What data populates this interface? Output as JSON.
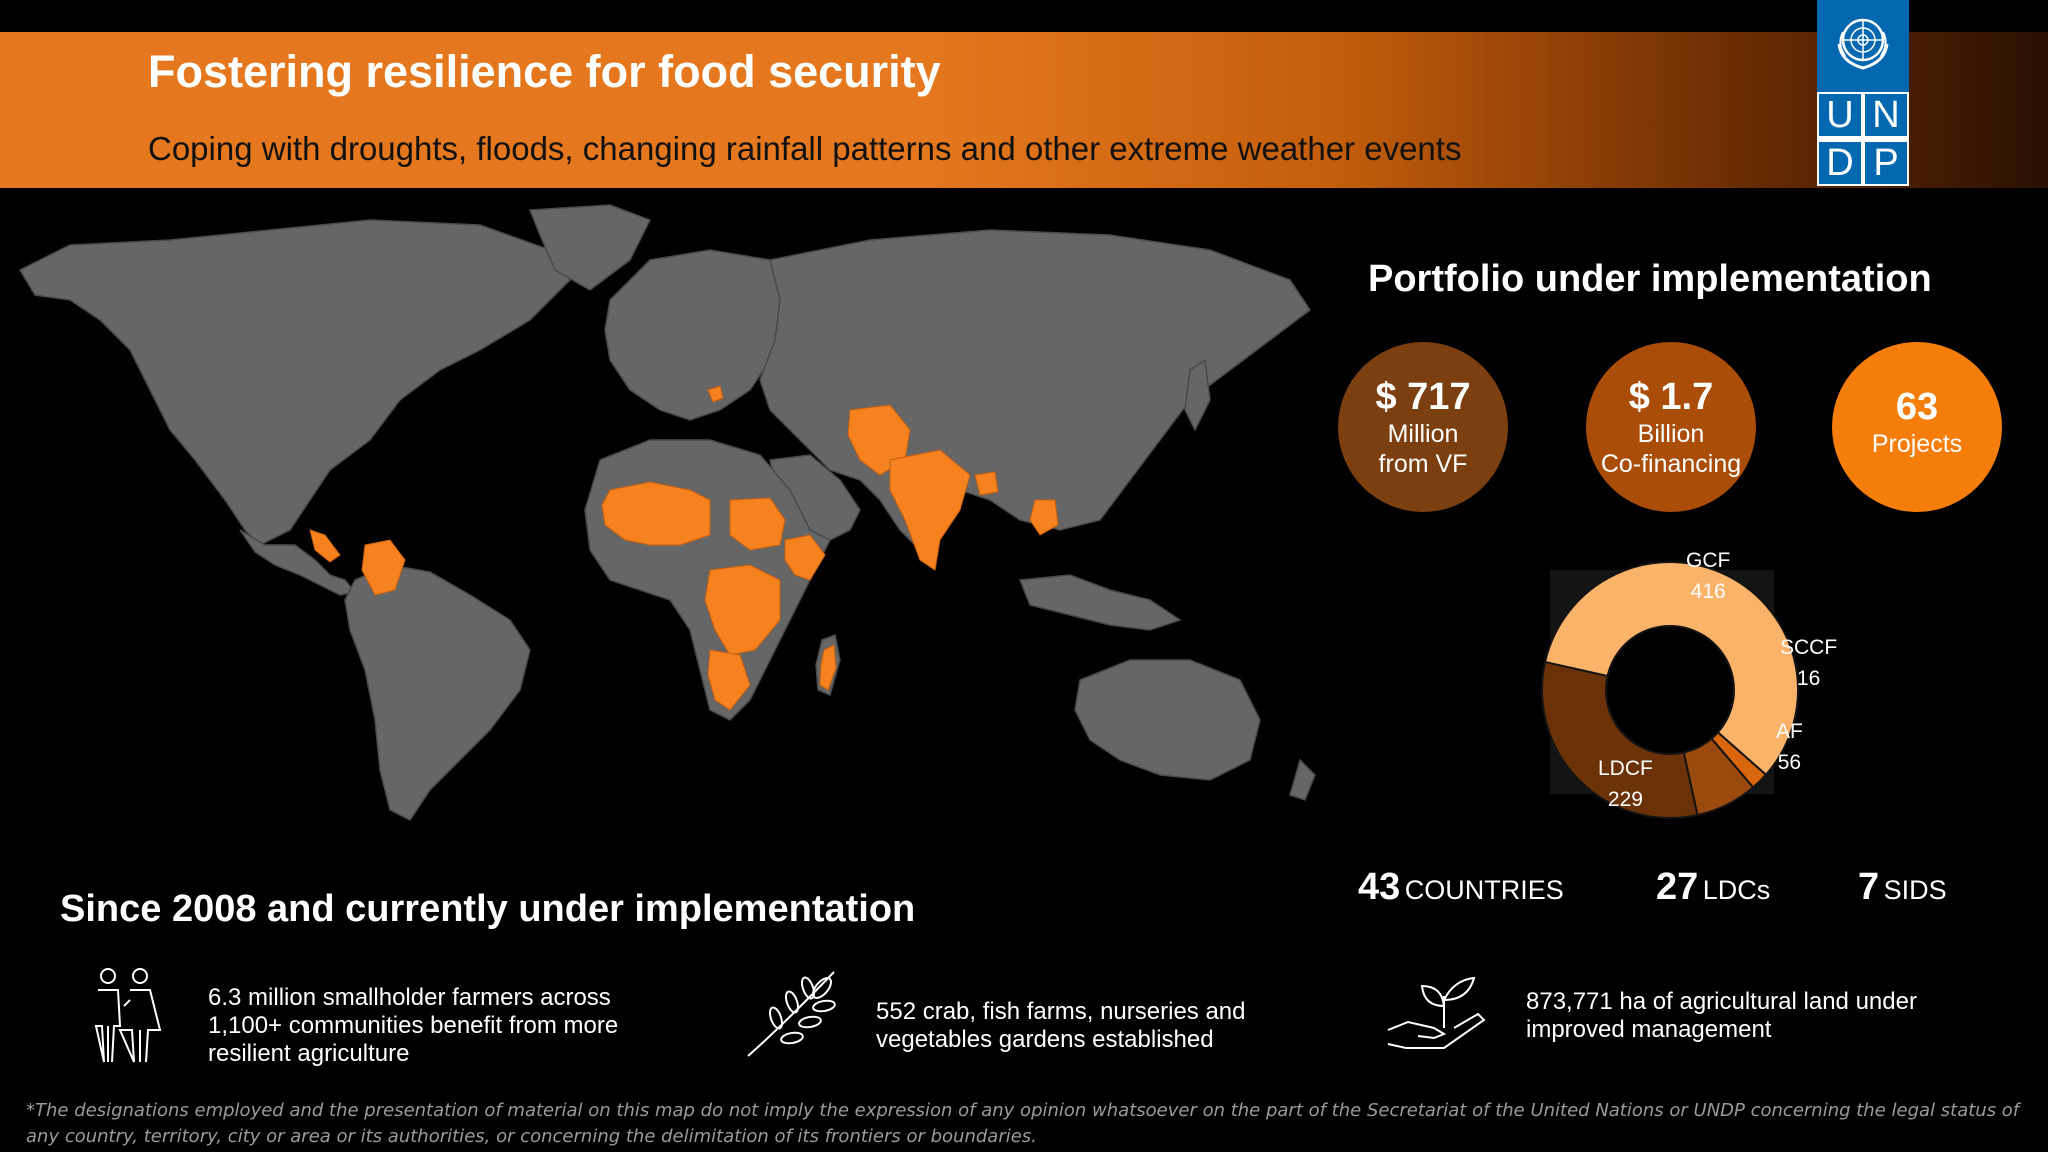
{
  "header": {
    "title": "Fostering resilience for food security",
    "subtitle": "Coping with droughts, floods, changing rainfall patterns and other extreme weather events"
  },
  "logo": {
    "letters": [
      "U",
      "N",
      "D",
      "P"
    ],
    "icon": "un-emblem-icon"
  },
  "colors": {
    "brand_orange": "#e5781e",
    "map_land": "#666666",
    "map_highlight": "#f5821f",
    "undp_blue": "#0468b1"
  },
  "map": {
    "icon": "world-map",
    "highlighted_regions": [
      "Central America",
      "Colombia",
      "West Africa",
      "Sudan",
      "Horn of Africa",
      "Central Africa",
      "Southern Africa",
      "Madagascar",
      "Balkans",
      "Afghanistan",
      "Pakistan",
      "India",
      "Bangladesh",
      "Cambodia"
    ]
  },
  "portfolio": {
    "title": "Portfolio under implementation",
    "circles": [
      {
        "big": "$ 717",
        "line1": "Million",
        "line2": "from VF"
      },
      {
        "big": "$ 1.7",
        "line1": "Billion",
        "line2": "Co-financing"
      },
      {
        "big": "63",
        "line1": "Projects",
        "line2": ""
      }
    ]
  },
  "chart_data": {
    "type": "pie",
    "variant": "donut",
    "categories": [
      "GCF",
      "SCCF",
      "AF",
      "LDCF"
    ],
    "values": [
      416,
      16,
      56,
      229
    ],
    "colors": [
      "#fbb36a",
      "#d9660d",
      "#9a4a0c",
      "#6b3207"
    ],
    "labels": [
      {
        "name": "GCF",
        "value": "416"
      },
      {
        "name": "SCCF",
        "value": "16"
      },
      {
        "name": "AF",
        "value": "56"
      },
      {
        "name": "LDCF",
        "value": "229"
      }
    ]
  },
  "stats": [
    {
      "num": "43",
      "label": "COUNTRIES"
    },
    {
      "num": "27",
      "label": "LDCs"
    },
    {
      "num": "7",
      "label": "SIDS"
    }
  ],
  "since": {
    "title": "Since 2008 and currently under implementation",
    "facts": [
      {
        "icon": "farmers-icon",
        "text": "6.3 million smallholder farmers across 1,100+ communities benefit from more resilient agriculture"
      },
      {
        "icon": "branch-icon",
        "text": "552 crab, fish farms, nurseries and vegetables gardens established"
      },
      {
        "icon": "seedling-hand-icon",
        "text": "873,771 ha of agricultural land under improved management"
      }
    ]
  },
  "disclaimer": "*The designations employed and the presentation of material on this map do not imply the expression of any opinion whatsoever on the part of the Secretariat of the United Nations or UNDP concerning the legal status of any country, territory, city or area or its authorities, or concerning the delimitation of its frontiers or boundaries."
}
